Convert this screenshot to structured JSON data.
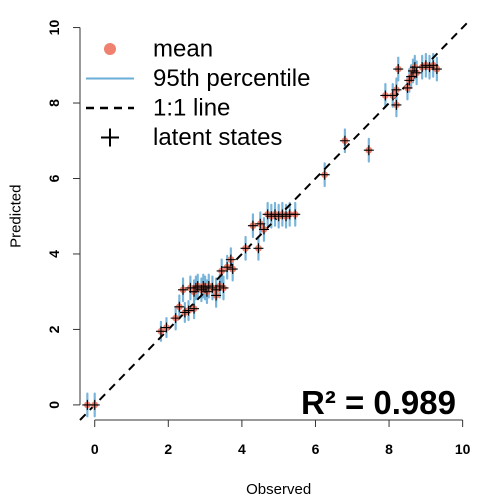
{
  "chart_data": {
    "type": "scatter",
    "xlabel": "Observed",
    "ylabel": "Predicted",
    "xlim": [
      -0.4,
      10.2
    ],
    "ylim": [
      -0.4,
      10.2
    ],
    "x_ticks": [
      "0",
      "2",
      "4",
      "6",
      "8",
      "10"
    ],
    "y_ticks": [
      "0",
      "2",
      "4",
      "6",
      "8",
      "10"
    ],
    "grid": false,
    "legend_position": "top-left",
    "legend": [
      {
        "label": "mean",
        "symbol": "dot",
        "color": "#f08070"
      },
      {
        "label": "95th percentile",
        "symbol": "line",
        "color": "#6baed6"
      },
      {
        "label": "1:1 line",
        "symbol": "dashed-line",
        "color": "#000000"
      },
      {
        "label": "latent states",
        "symbol": "plus",
        "color": "#000000"
      }
    ],
    "annotation": "R² = 0.989",
    "colors": {
      "mean": "#f08070",
      "interval": "#6baed6",
      "latent": "#000000",
      "reference": "#000000"
    },
    "reference_line": {
      "from": [
        -0.4,
        -0.4
      ],
      "to": [
        10.2,
        10.2
      ]
    },
    "series": [
      {
        "name": "mean",
        "points": [
          [
            -0.2,
            0.0,
            -0.3,
            0.3
          ],
          [
            0.0,
            0.0,
            -0.3,
            0.3
          ],
          [
            1.8,
            1.95,
            1.7,
            2.2
          ],
          [
            1.95,
            2.05,
            1.8,
            2.3
          ],
          [
            2.2,
            2.3,
            2.0,
            2.6
          ],
          [
            2.3,
            2.6,
            2.3,
            2.9
          ],
          [
            2.45,
            2.45,
            2.2,
            2.7
          ],
          [
            2.55,
            2.5,
            2.25,
            2.75
          ],
          [
            2.7,
            2.55,
            2.3,
            2.8
          ],
          [
            2.4,
            3.05,
            2.75,
            3.35
          ],
          [
            2.6,
            3.1,
            2.8,
            3.4
          ],
          [
            2.7,
            3.0,
            2.7,
            3.3
          ],
          [
            2.75,
            3.1,
            2.8,
            3.4
          ],
          [
            2.8,
            3.15,
            2.85,
            3.45
          ],
          [
            2.9,
            3.05,
            2.75,
            3.35
          ],
          [
            2.95,
            3.15,
            2.85,
            3.45
          ],
          [
            3.0,
            3.1,
            2.8,
            3.4
          ],
          [
            3.05,
            3.0,
            2.7,
            3.3
          ],
          [
            3.1,
            3.15,
            2.85,
            3.45
          ],
          [
            3.2,
            3.1,
            2.8,
            3.4
          ],
          [
            3.3,
            3.05,
            2.75,
            3.35
          ],
          [
            3.4,
            3.15,
            2.85,
            3.45
          ],
          [
            3.5,
            3.1,
            2.8,
            3.4
          ],
          [
            3.3,
            2.9,
            2.6,
            3.2
          ],
          [
            3.45,
            3.55,
            3.25,
            3.85
          ],
          [
            3.6,
            3.65,
            3.35,
            3.95
          ],
          [
            3.75,
            3.6,
            3.3,
            3.9
          ],
          [
            3.7,
            3.85,
            3.55,
            4.15
          ],
          [
            4.1,
            4.15,
            3.85,
            4.45
          ],
          [
            4.3,
            4.75,
            4.45,
            5.05
          ],
          [
            4.45,
            4.15,
            3.85,
            4.45
          ],
          [
            4.5,
            4.8,
            4.5,
            5.1
          ],
          [
            4.6,
            4.65,
            4.35,
            4.95
          ],
          [
            4.7,
            5.05,
            4.75,
            5.35
          ],
          [
            4.8,
            5.0,
            4.7,
            5.3
          ],
          [
            4.9,
            5.05,
            4.75,
            5.35
          ],
          [
            5.0,
            5.0,
            4.7,
            5.3
          ],
          [
            5.1,
            5.05,
            4.75,
            5.35
          ],
          [
            5.2,
            5.0,
            4.7,
            5.3
          ],
          [
            5.3,
            5.05,
            4.75,
            5.35
          ],
          [
            5.45,
            5.05,
            4.75,
            5.35
          ],
          [
            6.25,
            6.1,
            5.8,
            6.4
          ],
          [
            6.8,
            7.0,
            6.7,
            7.3
          ],
          [
            7.45,
            6.75,
            6.45,
            7.05
          ],
          [
            7.9,
            8.2,
            7.9,
            8.5
          ],
          [
            8.1,
            8.2,
            7.9,
            8.5
          ],
          [
            8.2,
            7.95,
            7.65,
            8.25
          ],
          [
            8.2,
            8.35,
            8.05,
            8.65
          ],
          [
            8.25,
            8.9,
            8.6,
            9.2
          ],
          [
            8.5,
            8.4,
            8.1,
            8.7
          ],
          [
            8.55,
            8.6,
            8.3,
            8.9
          ],
          [
            8.6,
            8.7,
            8.4,
            9.0
          ],
          [
            8.65,
            8.85,
            8.55,
            9.15
          ],
          [
            8.7,
            8.95,
            8.65,
            9.25
          ],
          [
            8.75,
            8.8,
            8.5,
            9.1
          ],
          [
            8.9,
            8.95,
            8.65,
            9.25
          ],
          [
            9.0,
            9.0,
            8.7,
            9.3
          ],
          [
            9.1,
            8.95,
            8.65,
            9.25
          ],
          [
            9.2,
            9.0,
            8.7,
            9.3
          ],
          [
            9.3,
            8.9,
            8.6,
            9.2
          ]
        ]
      }
    ]
  }
}
